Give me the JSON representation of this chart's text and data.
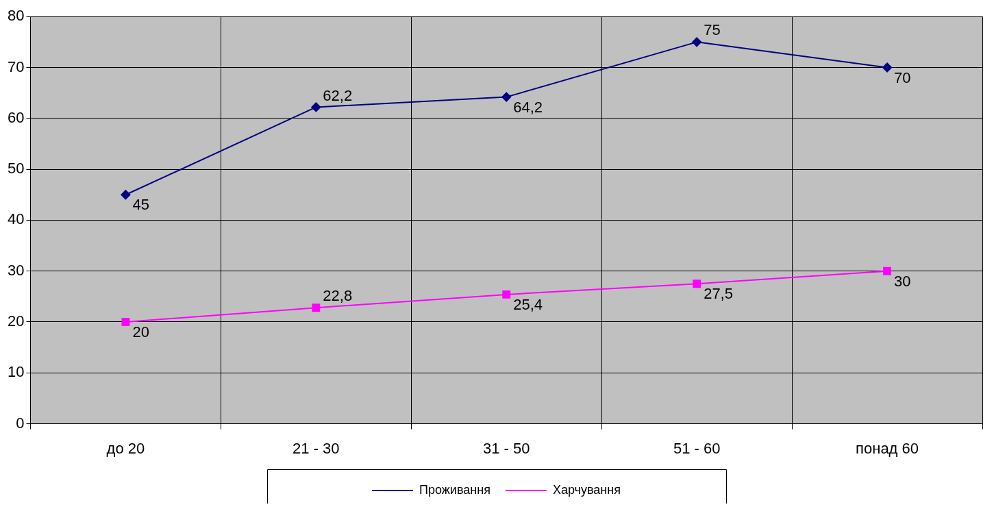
{
  "chart_data": {
    "type": "line",
    "categories": [
      "до 20",
      "21 - 30",
      "31 - 50",
      "51 - 60",
      "понад 60"
    ],
    "series": [
      {
        "name": "Проживання",
        "color": "#000080",
        "marker": "diamond",
        "values": [
          45,
          62.2,
          64.2,
          75,
          70
        ],
        "value_labels": [
          "45",
          "62,2",
          "64,2",
          "75",
          "70"
        ]
      },
      {
        "name": "Харчування",
        "color": "#ff00ff",
        "marker": "square",
        "values": [
          20,
          22.8,
          25.4,
          27.5,
          30
        ],
        "value_labels": [
          "20",
          "22,8",
          "25,4",
          "27,5",
          "30"
        ]
      }
    ],
    "ylim": [
      0,
      80
    ],
    "yticks": [
      0,
      10,
      20,
      30,
      40,
      50,
      60,
      70,
      80
    ],
    "grid": true,
    "legend": "bottom"
  }
}
